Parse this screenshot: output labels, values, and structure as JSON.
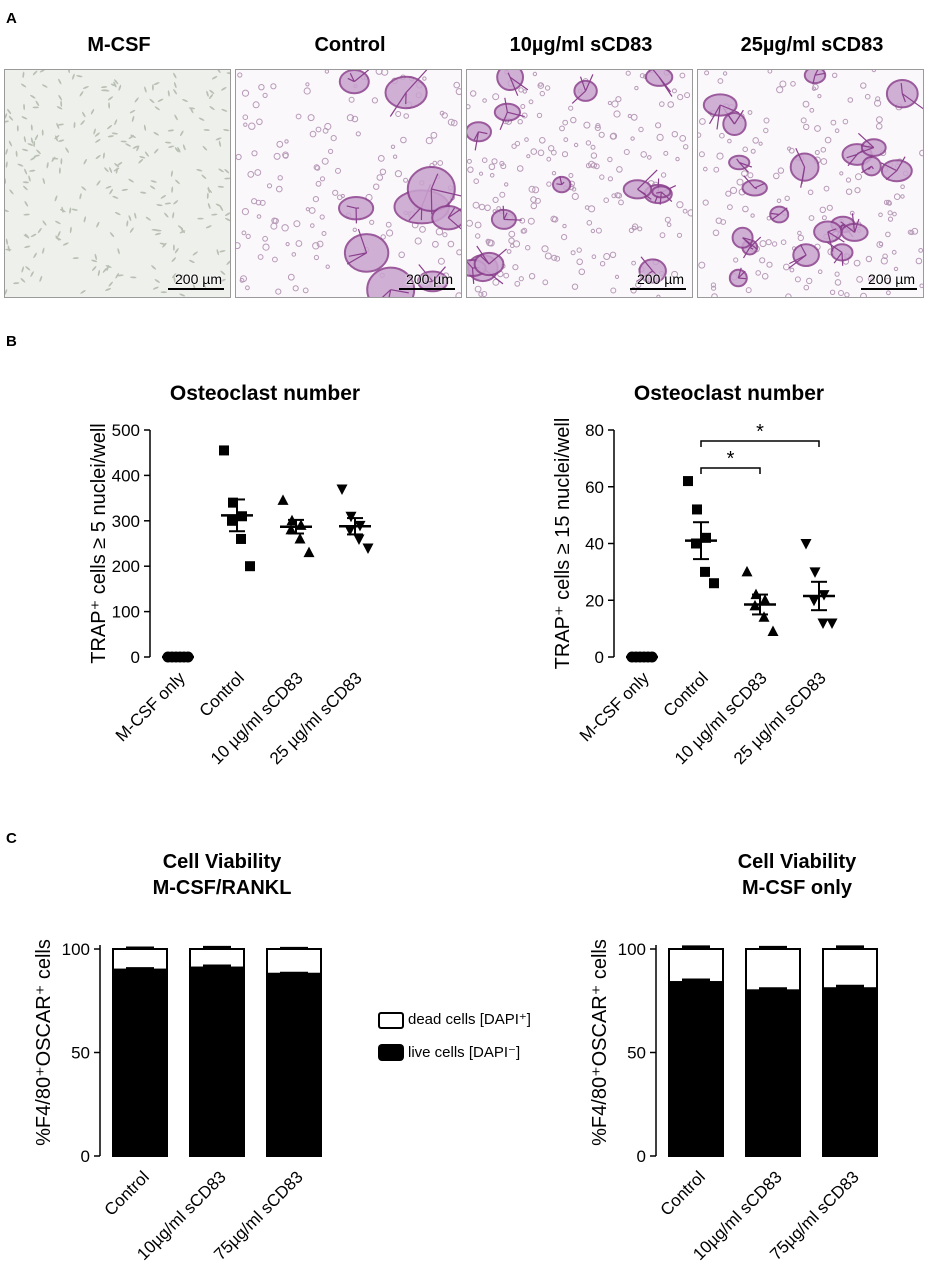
{
  "panels": {
    "a": {
      "label": "A",
      "images": [
        {
          "title": "M-CSF",
          "scale_bar": "200 µm"
        },
        {
          "title": "Control",
          "scale_bar": "200 µm"
        },
        {
          "title": "10µg/ml sCD83",
          "scale_bar": "200 µm"
        },
        {
          "title": "25µg/ml sCD83",
          "scale_bar": "200 µm"
        }
      ]
    },
    "b": {
      "label": "B"
    },
    "c": {
      "label": "C"
    }
  },
  "legend": {
    "dead": "dead cells [DAPI⁺]",
    "live": "live cells [DAPI⁻]"
  },
  "colors": {
    "ink": "#000000",
    "stain": "#8a3f8c",
    "stain_light": "#c9a3cf",
    "background": "#ffffff"
  },
  "chart_data": [
    {
      "type": "scatter",
      "title": "Osteoclast number",
      "ylabel": "TRAP⁺ cells ≥ 5 nuclei/well",
      "categories": [
        "M-CSF only",
        "Control",
        "10 µg/ml sCD83",
        "25 µg/ml sCD83"
      ],
      "ylim": [
        0,
        500
      ],
      "yticks": [
        0,
        100,
        200,
        300,
        400,
        500
      ],
      "markers": [
        "circle",
        "square",
        "triangle",
        "triangle-down"
      ],
      "points": [
        [
          0,
          0,
          0,
          0,
          0,
          0
        ],
        [
          455,
          340,
          310,
          300,
          260,
          200
        ],
        [
          345,
          300,
          290,
          280,
          260,
          230
        ],
        [
          370,
          310,
          290,
          280,
          260,
          240
        ]
      ],
      "mean": [
        0,
        312,
        287,
        288
      ],
      "sem": [
        0,
        35,
        15,
        18
      ]
    },
    {
      "type": "scatter",
      "title": "Osteoclast number",
      "ylabel": "TRAP⁺ cells ≥ 15 nuclei/well",
      "categories": [
        "M-CSF only",
        "Control",
        "10 µg/ml sCD83",
        "25 µg/ml sCD83"
      ],
      "ylim": [
        0,
        80
      ],
      "yticks": [
        0,
        20,
        40,
        60,
        80
      ],
      "markers": [
        "circle",
        "square",
        "triangle",
        "triangle-down"
      ],
      "points": [
        [
          0,
          0,
          0,
          0,
          0,
          0
        ],
        [
          62,
          52,
          42,
          40,
          30,
          26
        ],
        [
          30,
          22,
          20,
          18,
          14,
          9
        ],
        [
          40,
          30,
          22,
          20,
          12,
          12
        ]
      ],
      "mean": [
        0,
        41,
        18.5,
        21.5
      ],
      "sem": [
        0,
        6.5,
        3.5,
        5
      ],
      "significance": [
        {
          "from": 1,
          "to": 2,
          "label": "*"
        },
        {
          "from": 1,
          "to": 3,
          "label": "*"
        }
      ]
    },
    {
      "type": "bar",
      "title": "Cell Viability",
      "subtitle": "M-CSF/RANKL",
      "ylabel": "%F4/80⁺OSCAR⁺ cells",
      "categories": [
        "Control",
        "10µg/ml sCD83",
        "75µg/ml sCD83"
      ],
      "ylim": [
        0,
        100
      ],
      "yticks": [
        0,
        50,
        100
      ],
      "stacked": true,
      "series": [
        {
          "name": "live cells [DAPI⁻]",
          "values": [
            90,
            91,
            88
          ],
          "err": [
            0.5,
            0.8,
            0.3
          ]
        },
        {
          "name": "dead cells [DAPI⁺]",
          "values": [
            10,
            9,
            12
          ],
          "err": [
            0.5,
            0.8,
            0.3
          ]
        }
      ]
    },
    {
      "type": "bar",
      "title": "Cell Viability",
      "subtitle": "M-CSF only",
      "ylabel": "%F4/80⁺OSCAR⁺ cells",
      "categories": [
        "Control",
        "10µg/ml sCD83",
        "75µg/ml sCD83"
      ],
      "ylim": [
        0,
        100
      ],
      "yticks": [
        0,
        50,
        100
      ],
      "stacked": true,
      "series": [
        {
          "name": "live cells [DAPI⁻]",
          "values": [
            84,
            80,
            81
          ],
          "err": [
            1,
            0.8,
            1
          ]
        },
        {
          "name": "dead cells [DAPI⁺]",
          "values": [
            16,
            20,
            19
          ],
          "err": [
            1,
            0.8,
            1
          ]
        }
      ]
    }
  ]
}
